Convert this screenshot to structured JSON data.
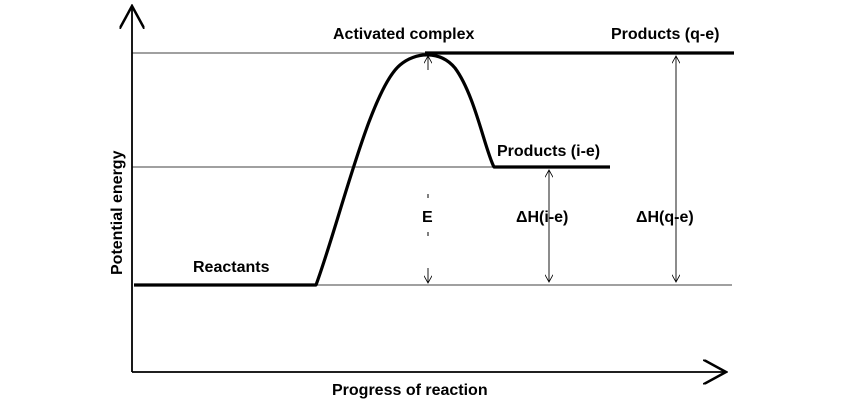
{
  "axes": {
    "x_label": "Progress of reaction",
    "y_label": "Potential energy"
  },
  "labels": {
    "activated_complex": "Activated complex",
    "products_qe": "Products (q-e)",
    "products_ie": "Products (i-e)",
    "reactants": "Reactants",
    "activation_energy": "E",
    "delta_h_ie": "ΔH(i-e)",
    "delta_h_qe": "ΔH(q-e)"
  }
}
